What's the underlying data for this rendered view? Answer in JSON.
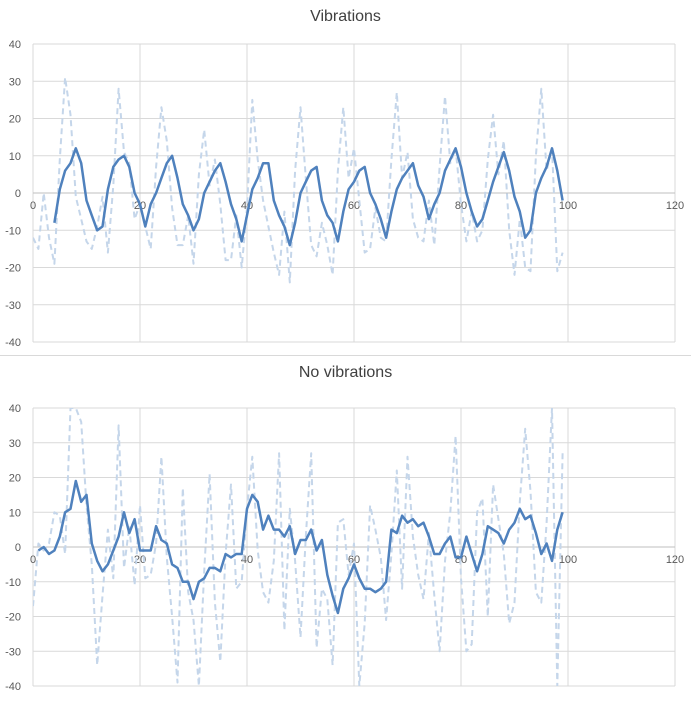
{
  "chart_data": [
    {
      "type": "line",
      "title": "Vibrations",
      "xlim": [
        0,
        120
      ],
      "ylim": [
        -40,
        40
      ],
      "xticks": [
        0,
        20,
        40,
        60,
        80,
        100,
        120
      ],
      "yticks": [
        -40,
        -30,
        -20,
        -10,
        0,
        10,
        20,
        30,
        40
      ],
      "grid": true,
      "series": [
        {
          "style": "dashed",
          "color": "#c5d6ea",
          "x": [
            0,
            1,
            2,
            3,
            4,
            5,
            6,
            7,
            8,
            9,
            10,
            11,
            12,
            13,
            14,
            15,
            16,
            17,
            18,
            19,
            20,
            21,
            22,
            23,
            24,
            25,
            26,
            27,
            28,
            29,
            30,
            31,
            32,
            33,
            34,
            35,
            36,
            37,
            38,
            39,
            40,
            41,
            42,
            43,
            44,
            45,
            46,
            47,
            48,
            49,
            50,
            51,
            52,
            53,
            54,
            55,
            56,
            57,
            58,
            59,
            60,
            61,
            62,
            63,
            64,
            65,
            66,
            67,
            68,
            69,
            70,
            71,
            72,
            73,
            74,
            75,
            76,
            77,
            78,
            79,
            80,
            81,
            82,
            83,
            84,
            85,
            86,
            87,
            88,
            89,
            90,
            91,
            92,
            93,
            94,
            95,
            96,
            97,
            98,
            99
          ],
          "y": [
            -12,
            -15,
            0,
            -12,
            -19,
            9,
            31,
            21,
            -1,
            -7,
            -13,
            -15,
            -9,
            -1,
            -16,
            2,
            28,
            11,
            8,
            -7,
            -3,
            -9,
            -15,
            7,
            23,
            14,
            -4,
            -14,
            -14,
            -6,
            -19,
            5,
            17,
            2,
            9,
            -3,
            -18,
            -18,
            -6,
            -20,
            -4,
            25,
            9,
            -2,
            -9,
            -16,
            -22,
            -5,
            -24,
            6,
            23,
            4,
            -14,
            -17,
            -8,
            -14,
            -22,
            6,
            23,
            4,
            12,
            -2,
            -16,
            -15,
            -4,
            -12,
            -13,
            9,
            27,
            4,
            11,
            -7,
            -12,
            -13,
            -2,
            -14,
            7,
            26,
            8,
            12,
            -3,
            -13,
            -5,
            -13,
            -10,
            9,
            21,
            5,
            14,
            -10,
            -22,
            -7,
            -20,
            -21,
            10,
            28,
            6,
            12,
            -21,
            -16
          ]
        },
        {
          "style": "solid",
          "color": "#4f81bd",
          "x": [
            4,
            5,
            6,
            7,
            8,
            9,
            10,
            11,
            12,
            13,
            14,
            15,
            16,
            17,
            18,
            19,
            20,
            21,
            22,
            23,
            24,
            25,
            26,
            27,
            28,
            29,
            30,
            31,
            32,
            33,
            34,
            35,
            36,
            37,
            38,
            39,
            40,
            41,
            42,
            43,
            44,
            45,
            46,
            47,
            48,
            49,
            50,
            51,
            52,
            53,
            54,
            55,
            56,
            57,
            58,
            59,
            60,
            61,
            62,
            63,
            64,
            65,
            66,
            67,
            68,
            69,
            70,
            71,
            72,
            73,
            74,
            75,
            76,
            77,
            78,
            79,
            80,
            81,
            82,
            83,
            84,
            85,
            86,
            87,
            88,
            89,
            90,
            91,
            92,
            93,
            94,
            95,
            96,
            97,
            98,
            99
          ],
          "y": [
            -8,
            1,
            6,
            8,
            12,
            8,
            -2,
            -6,
            -10,
            -9,
            1,
            7,
            9,
            10,
            7,
            0,
            -3,
            -9,
            -3,
            0,
            4,
            8,
            10,
            4,
            -3,
            -6,
            -10,
            -7,
            0,
            3,
            6,
            8,
            3,
            -3,
            -7,
            -13,
            -6,
            1,
            4,
            8,
            8,
            -2,
            -6,
            -9,
            -14,
            -8,
            0,
            3,
            6,
            7,
            -2,
            -6,
            -8,
            -13,
            -5,
            1,
            3,
            6,
            7,
            0,
            -3,
            -7,
            -12,
            -5,
            1,
            4,
            6,
            8,
            2,
            -1,
            -7,
            -3,
            0,
            6,
            9,
            12,
            7,
            0,
            -5,
            -9,
            -7,
            -2,
            3,
            7,
            11,
            6,
            -1,
            -5,
            -12,
            -10,
            0,
            4,
            7,
            12,
            6,
            -2
          ]
        }
      ]
    },
    {
      "type": "line",
      "title": "No vibrations",
      "xlim": [
        0,
        120
      ],
      "ylim": [
        -40,
        40
      ],
      "xticks": [
        0,
        20,
        40,
        60,
        80,
        100,
        120
      ],
      "yticks": [
        -40,
        -30,
        -20,
        -10,
        0,
        10,
        20,
        30,
        40
      ],
      "grid": true,
      "series": [
        {
          "style": "dashed",
          "color": "#c5d6ea",
          "x": [
            0,
            1,
            2,
            3,
            4,
            5,
            6,
            7,
            8,
            9,
            10,
            11,
            12,
            13,
            14,
            15,
            16,
            17,
            18,
            19,
            20,
            21,
            22,
            23,
            24,
            25,
            26,
            27,
            28,
            29,
            30,
            31,
            32,
            33,
            34,
            35,
            36,
            37,
            38,
            39,
            40,
            41,
            42,
            43,
            44,
            45,
            46,
            47,
            48,
            49,
            50,
            51,
            52,
            53,
            54,
            55,
            56,
            57,
            58,
            59,
            60,
            61,
            62,
            63,
            64,
            65,
            66,
            67,
            68,
            69,
            70,
            71,
            72,
            73,
            74,
            75,
            76,
            77,
            78,
            79,
            80,
            81,
            82,
            83,
            84,
            85,
            86,
            87,
            88,
            89,
            90,
            91,
            92,
            93,
            94,
            95,
            96,
            97,
            98,
            99
          ],
          "y": [
            -17,
            1,
            -1,
            1,
            10,
            9,
            -2,
            40,
            40,
            36,
            12,
            -5,
            -34,
            -14,
            5,
            -9,
            35,
            -6,
            6,
            -11,
            12,
            -9,
            -8,
            1,
            26,
            -3,
            -20,
            -39,
            17,
            -13,
            -21,
            -40,
            -7,
            21,
            -16,
            -33,
            -2,
            18,
            -12,
            -10,
            11,
            26,
            -1,
            -13,
            -16,
            -4,
            27,
            -24,
            11,
            -4,
            -26,
            3,
            27,
            -29,
            -12,
            -15,
            -34,
            7,
            8,
            -8,
            1,
            -40,
            -22,
            12,
            5,
            -3,
            -21,
            -2,
            22,
            -12,
            26,
            3,
            -8,
            -15,
            4,
            -14,
            -30,
            -4,
            10,
            32,
            -9,
            -30,
            -28,
            10,
            14,
            -20,
            18,
            8,
            -2,
            -22,
            -16,
            13,
            34,
            16,
            -13,
            -16,
            7,
            40,
            -40,
            27
          ]
        },
        {
          "style": "solid",
          "color": "#4f81bd",
          "x": [
            1,
            2,
            3,
            4,
            5,
            6,
            7,
            8,
            9,
            10,
            11,
            12,
            13,
            14,
            15,
            16,
            17,
            18,
            19,
            20,
            21,
            22,
            23,
            24,
            25,
            26,
            27,
            28,
            29,
            30,
            31,
            32,
            33,
            34,
            35,
            36,
            37,
            38,
            39,
            40,
            41,
            42,
            43,
            44,
            45,
            46,
            47,
            48,
            49,
            50,
            51,
            52,
            53,
            54,
            55,
            56,
            57,
            58,
            59,
            60,
            61,
            62,
            63,
            64,
            65,
            66,
            67,
            68,
            69,
            70,
            71,
            72,
            73,
            74,
            75,
            76,
            77,
            78,
            79,
            80,
            81,
            82,
            83,
            84,
            85,
            86,
            87,
            88,
            89,
            90,
            91,
            92,
            93,
            94,
            95,
            96,
            97,
            98,
            99
          ],
          "y": [
            -1,
            0,
            -2,
            -1,
            3,
            10,
            11,
            19,
            13,
            15,
            1,
            -4,
            -7,
            -5,
            -1,
            3,
            10,
            4,
            8,
            -1,
            -1,
            -1,
            6,
            2,
            1,
            -5,
            -6,
            -10,
            -10,
            -15,
            -10,
            -9,
            -6,
            -6,
            -7,
            -2,
            -3,
            -2,
            -2,
            11,
            15,
            13,
            5,
            9,
            5,
            5,
            3,
            6,
            -2,
            2,
            2,
            5,
            -1,
            2,
            -8,
            -14,
            -19,
            -12,
            -9,
            -5,
            -9,
            -12,
            -12,
            -13,
            -12,
            -10,
            5,
            4,
            9,
            7,
            8,
            6,
            7,
            3,
            -2,
            -2,
            1,
            3,
            -3,
            -3,
            3,
            -2,
            -7,
            -2,
            6,
            5,
            4,
            1,
            5,
            7,
            11,
            8,
            9,
            4,
            -2,
            1,
            -4,
            5,
            10
          ]
        }
      ]
    }
  ]
}
